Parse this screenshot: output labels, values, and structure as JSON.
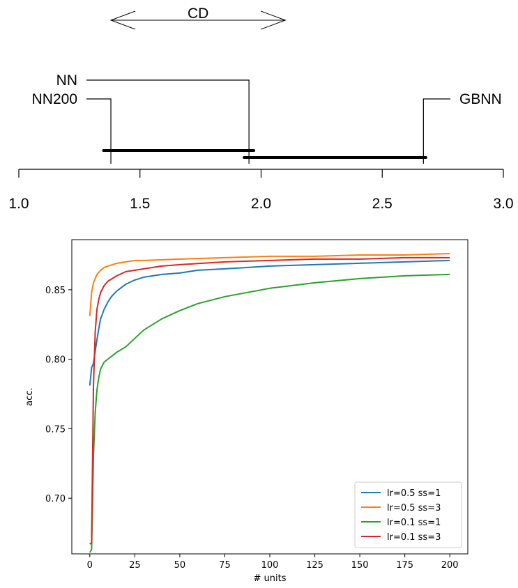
{
  "chart_data": [
    {
      "type": "critical-difference",
      "cd_label": "CD",
      "axis": {
        "min": 1.0,
        "max": 3.0,
        "ticks": [
          "1.0",
          "1.5",
          "2.0",
          "2.5",
          "3.0"
        ]
      },
      "cd_interval": [
        1.38,
        2.1
      ],
      "methods": [
        {
          "name": "NN",
          "rank": 1.95,
          "side": "left"
        },
        {
          "name": "NN200",
          "rank": 1.38,
          "side": "left"
        },
        {
          "name": "GBNN",
          "rank": 2.67,
          "side": "right"
        }
      ],
      "cliques": [
        [
          1.35,
          1.97
        ],
        [
          1.93,
          2.68
        ]
      ]
    },
    {
      "type": "line",
      "xlabel": "# units",
      "ylabel": "acc.",
      "xlim": [
        -10,
        210
      ],
      "ylim": [
        0.66,
        0.886
      ],
      "xticks": [
        "0",
        "25",
        "50",
        "75",
        "100",
        "125",
        "150",
        "175",
        "200"
      ],
      "yticks": [
        "0.70",
        "0.75",
        "0.80",
        "0.85"
      ],
      "legend_position": "lower-right",
      "series": [
        {
          "name": "lr=0.5 ss=1",
          "color": "#1f77b4",
          "points": [
            [
              0,
              0.781
            ],
            [
              1,
              0.794
            ],
            [
              2,
              0.797
            ],
            [
              3,
              0.806
            ],
            [
              4,
              0.814
            ],
            [
              5,
              0.822
            ],
            [
              6,
              0.829
            ],
            [
              8,
              0.836
            ],
            [
              10,
              0.841
            ],
            [
              12,
              0.845
            ],
            [
              15,
              0.849
            ],
            [
              18,
              0.852
            ],
            [
              20,
              0.854
            ],
            [
              25,
              0.857
            ],
            [
              30,
              0.859
            ],
            [
              40,
              0.861
            ],
            [
              50,
              0.862
            ],
            [
              60,
              0.864
            ],
            [
              75,
              0.865
            ],
            [
              100,
              0.867
            ],
            [
              125,
              0.868
            ],
            [
              150,
              0.869
            ],
            [
              175,
              0.87
            ],
            [
              200,
              0.871
            ]
          ]
        },
        {
          "name": "lr=0.5 ss=3",
          "color": "#ff7f0e",
          "points": [
            [
              0,
              0.831
            ],
            [
              1,
              0.848
            ],
            [
              2,
              0.855
            ],
            [
              4,
              0.861
            ],
            [
              6,
              0.864
            ],
            [
              8,
              0.866
            ],
            [
              10,
              0.867
            ],
            [
              15,
              0.869
            ],
            [
              20,
              0.87
            ],
            [
              25,
              0.871
            ],
            [
              30,
              0.871
            ],
            [
              50,
              0.872
            ],
            [
              75,
              0.873
            ],
            [
              100,
              0.874
            ],
            [
              125,
              0.874
            ],
            [
              150,
              0.875
            ],
            [
              175,
              0.875
            ],
            [
              200,
              0.876
            ]
          ]
        },
        {
          "name": "lr=0.1 ss=1",
          "color": "#2ca02c",
          "points": [
            [
              0,
              0.661
            ],
            [
              1,
              0.663
            ],
            [
              2,
              0.73
            ],
            [
              3,
              0.762
            ],
            [
              4,
              0.778
            ],
            [
              5,
              0.787
            ],
            [
              6,
              0.793
            ],
            [
              8,
              0.798
            ],
            [
              10,
              0.8
            ],
            [
              12,
              0.802
            ],
            [
              15,
              0.805
            ],
            [
              20,
              0.809
            ],
            [
              25,
              0.815
            ],
            [
              30,
              0.821
            ],
            [
              40,
              0.829
            ],
            [
              50,
              0.835
            ],
            [
              60,
              0.84
            ],
            [
              75,
              0.845
            ],
            [
              100,
              0.851
            ],
            [
              125,
              0.855
            ],
            [
              150,
              0.858
            ],
            [
              175,
              0.86
            ],
            [
              200,
              0.861
            ]
          ]
        },
        {
          "name": "lr=0.1 ss=3",
          "color": "#d62728",
          "points": [
            [
              0,
              0.667
            ],
            [
              1,
              0.668
            ],
            [
              2,
              0.78
            ],
            [
              3,
              0.82
            ],
            [
              4,
              0.836
            ],
            [
              5,
              0.843
            ],
            [
              6,
              0.848
            ],
            [
              8,
              0.853
            ],
            [
              10,
              0.856
            ],
            [
              15,
              0.86
            ],
            [
              20,
              0.863
            ],
            [
              25,
              0.864
            ],
            [
              30,
              0.865
            ],
            [
              40,
              0.867
            ],
            [
              50,
              0.868
            ],
            [
              75,
              0.87
            ],
            [
              100,
              0.871
            ],
            [
              125,
              0.872
            ],
            [
              150,
              0.872
            ],
            [
              175,
              0.873
            ],
            [
              200,
              0.873
            ]
          ]
        }
      ]
    }
  ]
}
